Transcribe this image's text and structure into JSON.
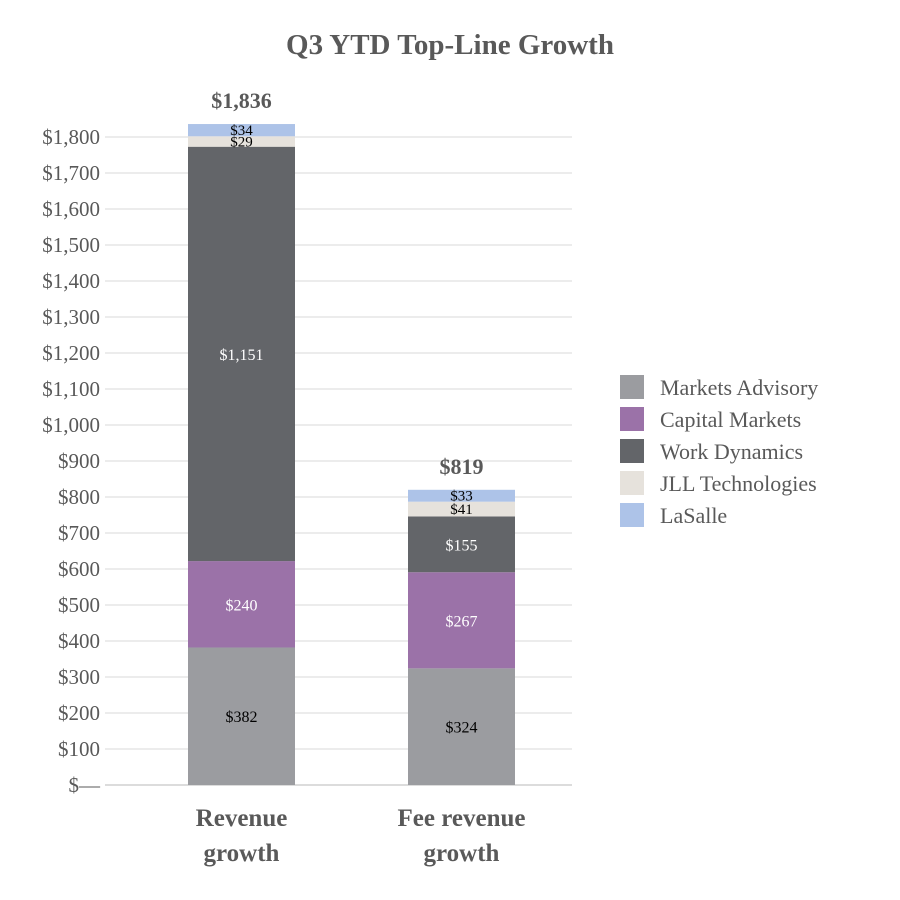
{
  "chart_data": {
    "type": "bar",
    "stacked": true,
    "title": "Q3 YTD Top-Line Growth",
    "categories": [
      "Revenue growth",
      "Fee revenue growth"
    ],
    "category_label_lines": [
      [
        "Revenue",
        "growth"
      ],
      [
        "Fee revenue",
        "growth"
      ]
    ],
    "totals": [
      1836,
      819
    ],
    "total_labels": [
      "$1,836",
      "$819"
    ],
    "series": [
      {
        "name": "Markets Advisory",
        "values": [
          382,
          324
        ],
        "labels": [
          "$382",
          "$324"
        ],
        "color": "#9b9ca0",
        "label_color": "#000000"
      },
      {
        "name": "Capital Markets",
        "values": [
          240,
          267
        ],
        "labels": [
          "$240",
          "$267"
        ],
        "color": "#9b72a8",
        "label_color": "#ffffff"
      },
      {
        "name": "Work Dynamics",
        "values": [
          1151,
          155
        ],
        "labels": [
          "$1,151",
          "$155"
        ],
        "color": "#636569",
        "label_color": "#ffffff"
      },
      {
        "name": "JLL Technologies",
        "values": [
          29,
          41
        ],
        "labels": [
          "$29",
          "$41"
        ],
        "color": "#e6e2dc",
        "label_color": "#000000"
      },
      {
        "name": "LaSalle",
        "values": [
          34,
          33
        ],
        "labels": [
          "$34",
          "$33"
        ],
        "color": "#adc3e8",
        "label_color": "#000000"
      }
    ],
    "ylim": [
      0,
      1800
    ],
    "yticks": [
      0,
      100,
      200,
      300,
      400,
      500,
      600,
      700,
      800,
      900,
      1000,
      1100,
      1200,
      1300,
      1400,
      1500,
      1600,
      1700,
      1800
    ],
    "ytick_labels": [
      "$—",
      "$100",
      "$200",
      "$300",
      "$400",
      "$500",
      "$600",
      "$700",
      "$800",
      "$900",
      "$1,000",
      "$1,100",
      "$1,200",
      "$1,300",
      "$1,400",
      "$1,500",
      "$1,600",
      "$1,700",
      "$1,800"
    ],
    "grid": true,
    "legend_position": "right"
  }
}
